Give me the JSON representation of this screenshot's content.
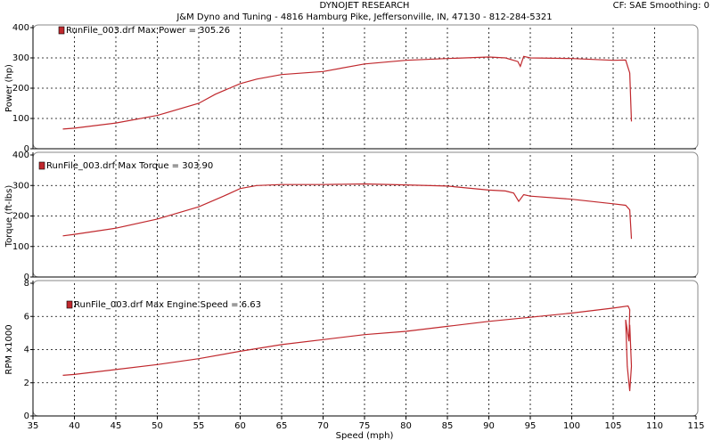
{
  "header": {
    "title": "DYNOJET RESEARCH",
    "subtitle": "J&M Dyno and Tuning - 4816 Hamburg Pike, Jeffersonville, IN, 47130 - 812-284-5321",
    "settings": "CF: SAE  Smoothing: 0"
  },
  "chart_data": [
    {
      "type": "line",
      "ylabel": "Power (hp)",
      "annotation": "RunFile_003.drf Max Power = 305.26",
      "color": "#c0282d",
      "ylim": [
        0,
        400
      ],
      "yticks": [
        0,
        100,
        200,
        300,
        400
      ],
      "grid": true,
      "x": [
        38.6,
        40,
        45,
        50,
        55,
        57,
        60,
        62,
        65,
        70,
        75,
        80,
        85,
        90,
        92,
        93.5,
        93.8,
        94.2,
        95,
        100,
        105,
        106.5,
        107,
        107.2
      ],
      "values": [
        65,
        68,
        85,
        110,
        150,
        180,
        215,
        230,
        245,
        255,
        280,
        292,
        298,
        303,
        300,
        288,
        272,
        305,
        300,
        298,
        292,
        293,
        250,
        90
      ]
    },
    {
      "type": "line",
      "ylabel": "Torque (ft-lbs)",
      "annotation": "RunFile_003.drf Max Torque = 303.90",
      "color": "#c0282d",
      "ylim": [
        0,
        400
      ],
      "yticks": [
        0,
        100,
        200,
        300,
        400
      ],
      "grid": true,
      "x": [
        38.6,
        40,
        45,
        50,
        55,
        58,
        60,
        62,
        65,
        70,
        75,
        80,
        85,
        90,
        92,
        93,
        93.6,
        94.2,
        95,
        100,
        105,
        106.5,
        107,
        107.2
      ],
      "values": [
        135,
        140,
        160,
        190,
        230,
        265,
        290,
        300,
        303,
        303,
        305,
        302,
        298,
        285,
        282,
        275,
        248,
        270,
        265,
        255,
        240,
        235,
        220,
        125
      ]
    },
    {
      "type": "line",
      "ylabel": "RPM x1000",
      "annotation": "RunFile_003.drf Max Engine Speed = 6.63",
      "color": "#c0282d",
      "ylim": [
        0,
        8
      ],
      "yticks": [
        0,
        2,
        4,
        6,
        8
      ],
      "grid": true,
      "xlim": [
        35,
        115
      ],
      "xticks": [
        35,
        40,
        45,
        50,
        55,
        60,
        65,
        70,
        75,
        80,
        85,
        90,
        95,
        100,
        105,
        110,
        115
      ],
      "xlabel": "Speed (mph)",
      "x": [
        38.6,
        40,
        45,
        50,
        55,
        60,
        65,
        70,
        75,
        80,
        85,
        90,
        95,
        100,
        105,
        106.8,
        107,
        106.9,
        106.5,
        106.7,
        107,
        107.2,
        107
      ],
      "values": [
        2.45,
        2.5,
        2.8,
        3.1,
        3.45,
        3.9,
        4.3,
        4.6,
        4.9,
        5.1,
        5.4,
        5.7,
        5.95,
        6.2,
        6.5,
        6.63,
        6.4,
        4.5,
        5.8,
        3.0,
        1.5,
        3.0,
        5.5
      ]
    }
  ]
}
